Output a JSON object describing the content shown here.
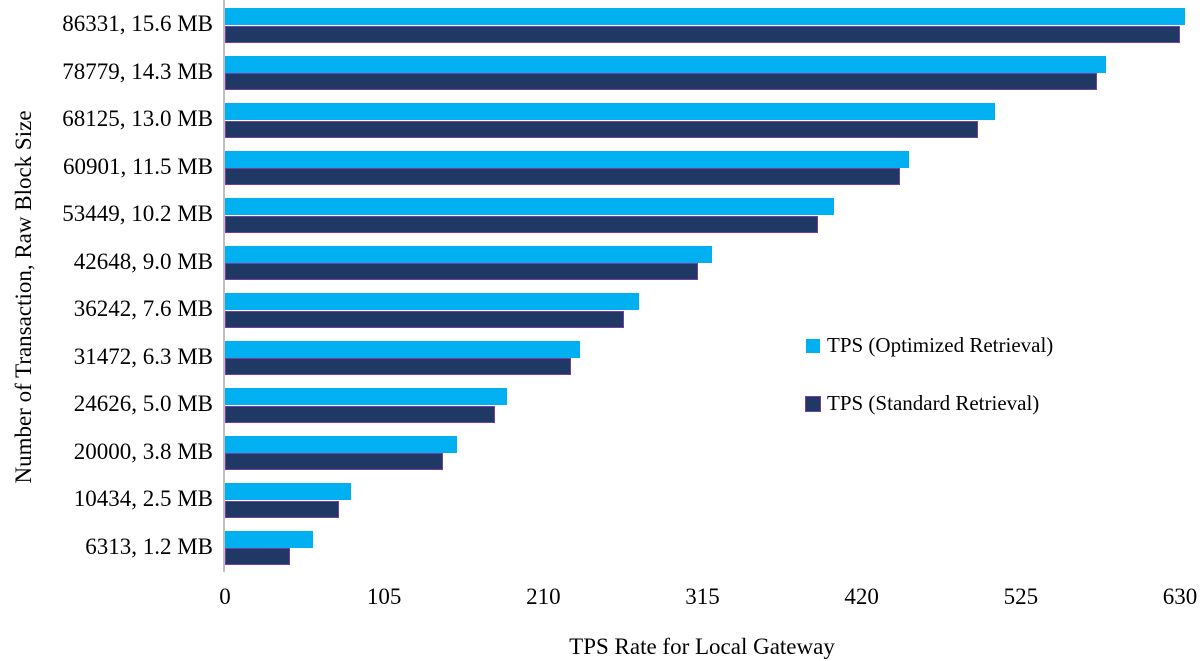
{
  "chart_data": {
    "type": "bar",
    "orientation": "horizontal",
    "title": "",
    "xlabel": "TPS Rate for Local Gateway",
    "ylabel": "Number of Transaction, Raw Block Size",
    "xlim": [
      0,
      630
    ],
    "xticks": [
      0,
      105,
      210,
      315,
      420,
      525,
      630
    ],
    "grid": false,
    "legend_position": "center-right",
    "axis_line_color": "#bfbfbf",
    "categories": [
      "86331, 15.6 MB",
      "78779, 14.3 MB",
      "68125, 13.0 MB",
      "60901, 11.5 MB",
      "53449, 10.2 MB",
      "42648, 9.0 MB",
      "36242, 7.6 MB",
      "31472, 6.3 MB",
      "24626, 5.0 MB",
      "20000, 3.8 MB",
      "10434, 2.5 MB",
      "6313, 1.2 MB"
    ],
    "series": [
      {
        "name": "TPS (Optimized Retrieval)",
        "color": "#00b0f0",
        "values": [
          633,
          581,
          508,
          451,
          402,
          321,
          273,
          234,
          186,
          153,
          83,
          58
        ]
      },
      {
        "name": "TPS (Standard Retrieval)",
        "color": "#1f3864",
        "border_color": "#7a3da8",
        "values": [
          630,
          575,
          497,
          445,
          391,
          312,
          263,
          228,
          178,
          144,
          75,
          43
        ]
      }
    ]
  }
}
